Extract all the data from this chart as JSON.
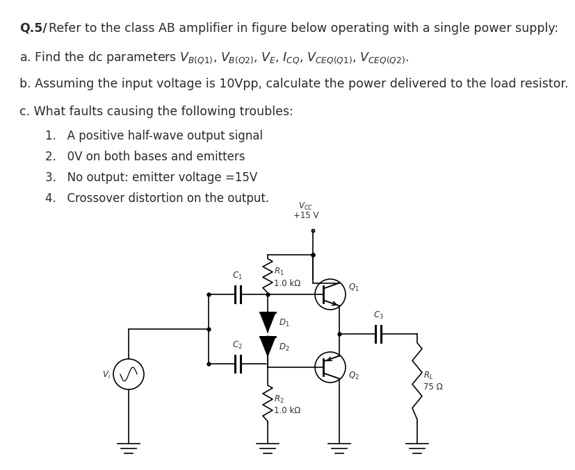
{
  "bg_color": "#ffffff",
  "text_color": "#2a2a2a",
  "title": "Q.5/ Refer to the class AB amplifier in figure below operating with a single power supply:",
  "line_a": "a. Find the dc parameters $V_{B(Q1)}$, $V_{B(Q2)}$, $V_E$, $I_{CQ}$, $V_{CEQ(Q1)}$, $V_{CEQ(Q2)}$.",
  "line_b": "b. Assuming the input voltage is 10Vpp, calculate the power delivered to the load resistor.",
  "line_c": "c. What faults causing the following troubles:",
  "items": [
    "1.   A positive half-wave output signal",
    "2.   0V on both bases and emitters",
    "3.   No output: emitter voltage =15V",
    "4.   Crossover distortion on the output."
  ],
  "fs_main": 12.5,
  "fs_item": 12.0,
  "fs_circ": 8.5
}
